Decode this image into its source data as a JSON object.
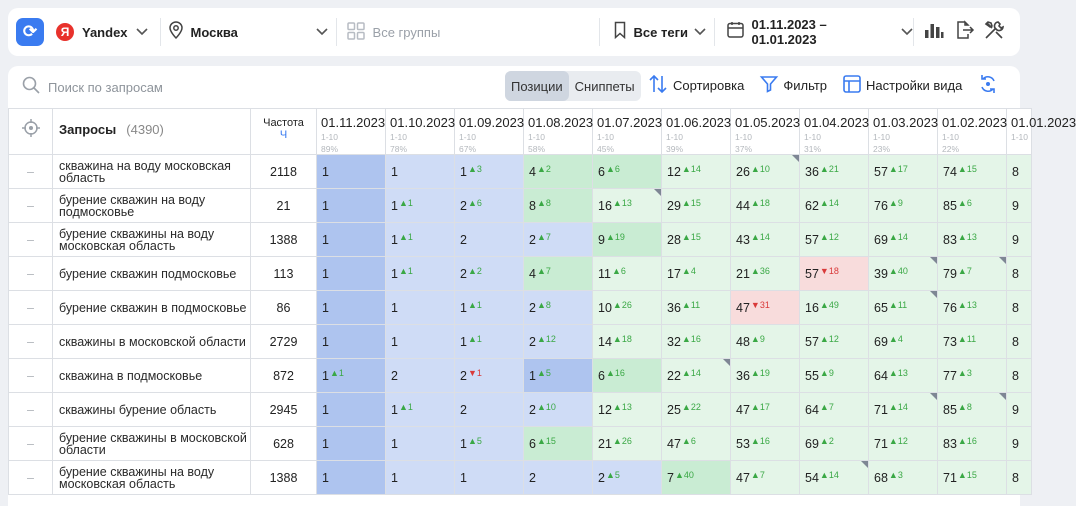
{
  "toolbar": {
    "engine": "Yandex",
    "engine_logo": "Я",
    "region": "Москва",
    "groups_placeholder": "Все группы",
    "tags": "Все теги",
    "date_range": "01.11.2023 – 01.01.2023"
  },
  "panel": {
    "search_placeholder": "Поиск по запросам",
    "view_tabs": [
      "Позиции",
      "Сниппеты"
    ],
    "active_tab": "Позиции",
    "sort_label": "Сортировка",
    "filter_label": "Фильтр",
    "view_settings_label": "Настройки вида"
  },
  "table": {
    "queries_header": "Запросы",
    "queries_count": "(4390)",
    "freq_header": "Частота",
    "freq_sub": "Ч",
    "dates": [
      {
        "date": "01.11.2023",
        "range": "1-10",
        "pct": "89%"
      },
      {
        "date": "01.10.2023",
        "range": "1-10",
        "pct": "78%"
      },
      {
        "date": "01.09.2023",
        "range": "1-10",
        "pct": "67%"
      },
      {
        "date": "01.08.2023",
        "range": "1-10",
        "pct": "58%"
      },
      {
        "date": "01.07.2023",
        "range": "1-10",
        "pct": "45%"
      },
      {
        "date": "01.06.2023",
        "range": "1-10",
        "pct": "39%"
      },
      {
        "date": "01.05.2023",
        "range": "1-10",
        "pct": "37%"
      },
      {
        "date": "01.04.2023",
        "range": "1-10",
        "pct": "31%"
      },
      {
        "date": "01.03.2023",
        "range": "1-10",
        "pct": "23%"
      },
      {
        "date": "01.02.2023",
        "range": "1-10",
        "pct": "22%"
      },
      {
        "date": "01.01.2023",
        "range": "1-10",
        "pct": ""
      }
    ],
    "rows": [
      {
        "query": "скважина на воду московская область",
        "freq": "2118",
        "cells": [
          {
            "p": "1",
            "b": "b-dark"
          },
          {
            "p": "1",
            "b": "b-light"
          },
          {
            "p": "1",
            "c": "3",
            "b": "b-light"
          },
          {
            "p": "4",
            "c": "2",
            "b": "g-dark"
          },
          {
            "p": "6",
            "c": "6",
            "b": "g-dark"
          },
          {
            "p": "12",
            "c": "14",
            "b": "g-light"
          },
          {
            "p": "26",
            "c": "10",
            "b": "g-light",
            "f": 1
          },
          {
            "p": "36",
            "c": "21",
            "b": "g-light"
          },
          {
            "p": "57",
            "c": "17",
            "b": "g-light"
          },
          {
            "p": "74",
            "c": "15",
            "b": "g-light"
          },
          {
            "p": "8",
            "b": "g-light"
          }
        ]
      },
      {
        "query": "бурение скважин на воду подмосковье",
        "freq": "21",
        "cells": [
          {
            "p": "1",
            "b": "b-dark"
          },
          {
            "p": "1",
            "c": "1",
            "b": "b-light"
          },
          {
            "p": "2",
            "c": "6",
            "b": "b-light"
          },
          {
            "p": "8",
            "c": "8",
            "b": "g-dark"
          },
          {
            "p": "16",
            "c": "13",
            "b": "g-light",
            "f": 1
          },
          {
            "p": "29",
            "c": "15",
            "b": "g-light"
          },
          {
            "p": "44",
            "c": "18",
            "b": "g-light"
          },
          {
            "p": "62",
            "c": "14",
            "b": "g-light"
          },
          {
            "p": "76",
            "c": "9",
            "b": "g-light"
          },
          {
            "p": "85",
            "c": "6",
            "b": "g-light"
          },
          {
            "p": "9",
            "b": "g-light"
          }
        ]
      },
      {
        "query": "бурение скважины на воду московская область",
        "freq": "1388",
        "cells": [
          {
            "p": "1",
            "b": "b-dark"
          },
          {
            "p": "1",
            "c": "1",
            "b": "b-light"
          },
          {
            "p": "2",
            "b": "b-light"
          },
          {
            "p": "2",
            "c": "7",
            "b": "b-light"
          },
          {
            "p": "9",
            "c": "19",
            "b": "g-dark"
          },
          {
            "p": "28",
            "c": "15",
            "b": "g-light"
          },
          {
            "p": "43",
            "c": "14",
            "b": "g-light"
          },
          {
            "p": "57",
            "c": "12",
            "b": "g-light"
          },
          {
            "p": "69",
            "c": "14",
            "b": "g-light"
          },
          {
            "p": "83",
            "c": "13",
            "b": "g-light"
          },
          {
            "p": "9",
            "b": "g-light"
          }
        ]
      },
      {
        "query": "бурение скважин подмосковье",
        "freq": "113",
        "cells": [
          {
            "p": "1",
            "b": "b-dark"
          },
          {
            "p": "1",
            "c": "1",
            "b": "b-light"
          },
          {
            "p": "2",
            "c": "2",
            "b": "b-light"
          },
          {
            "p": "4",
            "c": "7",
            "b": "g-dark"
          },
          {
            "p": "11",
            "c": "6",
            "b": "g-light"
          },
          {
            "p": "17",
            "c": "4",
            "b": "g-light"
          },
          {
            "p": "21",
            "c": "36",
            "b": "g-light"
          },
          {
            "p": "57",
            "d": "18",
            "b": "r-light"
          },
          {
            "p": "39",
            "c": "40",
            "b": "g-light",
            "f": 1
          },
          {
            "p": "79",
            "c": "7",
            "b": "g-light",
            "f": 1
          },
          {
            "p": "8",
            "b": "g-light"
          }
        ]
      },
      {
        "query": "бурение скважин в подмосковье",
        "freq": "86",
        "cells": [
          {
            "p": "1",
            "b": "b-dark"
          },
          {
            "p": "1",
            "b": "b-light"
          },
          {
            "p": "1",
            "c": "1",
            "b": "b-light"
          },
          {
            "p": "2",
            "c": "8",
            "b": "b-light"
          },
          {
            "p": "10",
            "c": "26",
            "b": "g-light"
          },
          {
            "p": "36",
            "c": "11",
            "b": "g-light"
          },
          {
            "p": "47",
            "d": "31",
            "b": "r-light"
          },
          {
            "p": "16",
            "c": "49",
            "b": "g-light"
          },
          {
            "p": "65",
            "c": "11",
            "b": "g-light",
            "f": 1
          },
          {
            "p": "76",
            "c": "13",
            "b": "g-light"
          },
          {
            "p": "8",
            "b": "g-light"
          }
        ]
      },
      {
        "query": "скважины в московской области",
        "freq": "2729",
        "cells": [
          {
            "p": "1",
            "b": "b-dark"
          },
          {
            "p": "1",
            "b": "b-light"
          },
          {
            "p": "1",
            "c": "1",
            "b": "b-light"
          },
          {
            "p": "2",
            "c": "12",
            "b": "b-light"
          },
          {
            "p": "14",
            "c": "18",
            "b": "g-light"
          },
          {
            "p": "32",
            "c": "16",
            "b": "g-light"
          },
          {
            "p": "48",
            "c": "9",
            "b": "g-light"
          },
          {
            "p": "57",
            "c": "12",
            "b": "g-light"
          },
          {
            "p": "69",
            "c": "4",
            "b": "g-light"
          },
          {
            "p": "73",
            "c": "11",
            "b": "g-light"
          },
          {
            "p": "8",
            "b": "g-light"
          }
        ]
      },
      {
        "query": "скважина в подмосковье",
        "freq": "872",
        "cells": [
          {
            "p": "1",
            "c": "1",
            "b": "b-dark"
          },
          {
            "p": "2",
            "b": "b-light"
          },
          {
            "p": "2",
            "d": "1",
            "b": "b-light"
          },
          {
            "p": "1",
            "c": "5",
            "b": "b-dark"
          },
          {
            "p": "6",
            "c": "16",
            "b": "g-dark"
          },
          {
            "p": "22",
            "c": "14",
            "b": "g-light",
            "f": 1
          },
          {
            "p": "36",
            "c": "19",
            "b": "g-light"
          },
          {
            "p": "55",
            "c": "9",
            "b": "g-light"
          },
          {
            "p": "64",
            "c": "13",
            "b": "g-light"
          },
          {
            "p": "77",
            "c": "3",
            "b": "g-light"
          },
          {
            "p": "8",
            "b": "g-light"
          }
        ]
      },
      {
        "query": "скважины бурение область",
        "freq": "2945",
        "cells": [
          {
            "p": "1",
            "b": "b-dark"
          },
          {
            "p": "1",
            "c": "1",
            "b": "b-light"
          },
          {
            "p": "2",
            "b": "b-light"
          },
          {
            "p": "2",
            "c": "10",
            "b": "b-light"
          },
          {
            "p": "12",
            "c": "13",
            "b": "g-light"
          },
          {
            "p": "25",
            "c": "22",
            "b": "g-light"
          },
          {
            "p": "47",
            "c": "17",
            "b": "g-light"
          },
          {
            "p": "64",
            "c": "7",
            "b": "g-light"
          },
          {
            "p": "71",
            "c": "14",
            "b": "g-light",
            "f": 1
          },
          {
            "p": "85",
            "c": "8",
            "b": "g-light",
            "f": 1
          },
          {
            "p": "9",
            "b": "g-light"
          }
        ]
      },
      {
        "query": "бурение скважины в московской области",
        "freq": "628",
        "cells": [
          {
            "p": "1",
            "b": "b-dark"
          },
          {
            "p": "1",
            "b": "b-light"
          },
          {
            "p": "1",
            "c": "5",
            "b": "b-light"
          },
          {
            "p": "6",
            "c": "15",
            "b": "g-dark"
          },
          {
            "p": "21",
            "c": "26",
            "b": "g-light"
          },
          {
            "p": "47",
            "c": "6",
            "b": "g-light"
          },
          {
            "p": "53",
            "c": "16",
            "b": "g-light"
          },
          {
            "p": "69",
            "c": "2",
            "b": "g-light"
          },
          {
            "p": "71",
            "c": "12",
            "b": "g-light"
          },
          {
            "p": "83",
            "c": "16",
            "b": "g-light"
          },
          {
            "p": "9",
            "b": "g-light"
          }
        ]
      },
      {
        "query": "бурение скважины на воду московская область",
        "freq": "1388",
        "cells": [
          {
            "p": "1",
            "b": "b-dark"
          },
          {
            "p": "1",
            "b": "b-light"
          },
          {
            "p": "1",
            "b": "b-light"
          },
          {
            "p": "2",
            "b": "b-light"
          },
          {
            "p": "2",
            "c": "5",
            "b": "b-light"
          },
          {
            "p": "7",
            "c": "40",
            "b": "g-dark"
          },
          {
            "p": "47",
            "c": "7",
            "b": "g-light"
          },
          {
            "p": "54",
            "c": "14",
            "b": "g-light",
            "f": 1
          },
          {
            "p": "68",
            "c": "3",
            "b": "g-light"
          },
          {
            "p": "71",
            "c": "15",
            "b": "g-light"
          },
          {
            "p": "8",
            "b": "g-light"
          }
        ]
      }
    ]
  }
}
